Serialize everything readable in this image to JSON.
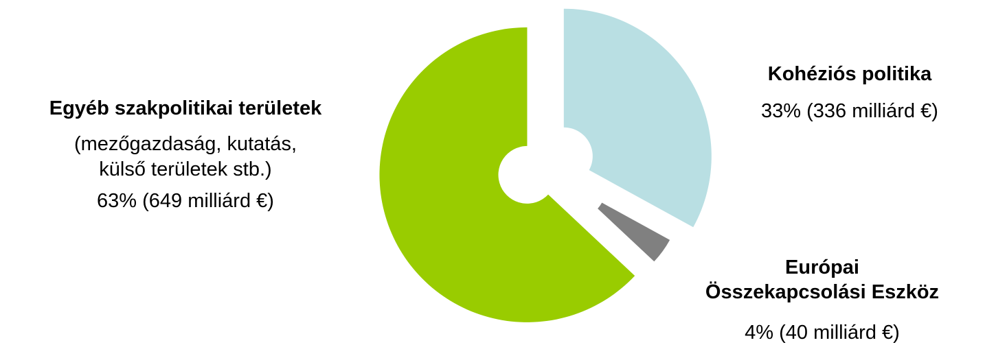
{
  "chart_data": {
    "type": "pie",
    "slices": [
      {
        "name": "Kohéziós politika",
        "percent": 33,
        "value": 336,
        "value_label": "33% (336 milliárd €)",
        "color": "#b9dfe3"
      },
      {
        "name": "Európai Összekapcsolási Eszköz",
        "name_lines": [
          "Európai",
          "Összekapcsolási Eszköz"
        ],
        "percent": 4,
        "value": 40,
        "value_label": "4% (40 milliárd €)",
        "color": "#808080"
      },
      {
        "name": "Egyéb szakpolitikai területek",
        "detail_lines": [
          "(mezőgazdaság, kutatás,",
          "külső területek stb.)"
        ],
        "percent": 63,
        "value": 649,
        "value_label": "63% (649 milliárd €)",
        "color": "#99cc00"
      }
    ],
    "exploded": true,
    "legend": "none"
  }
}
